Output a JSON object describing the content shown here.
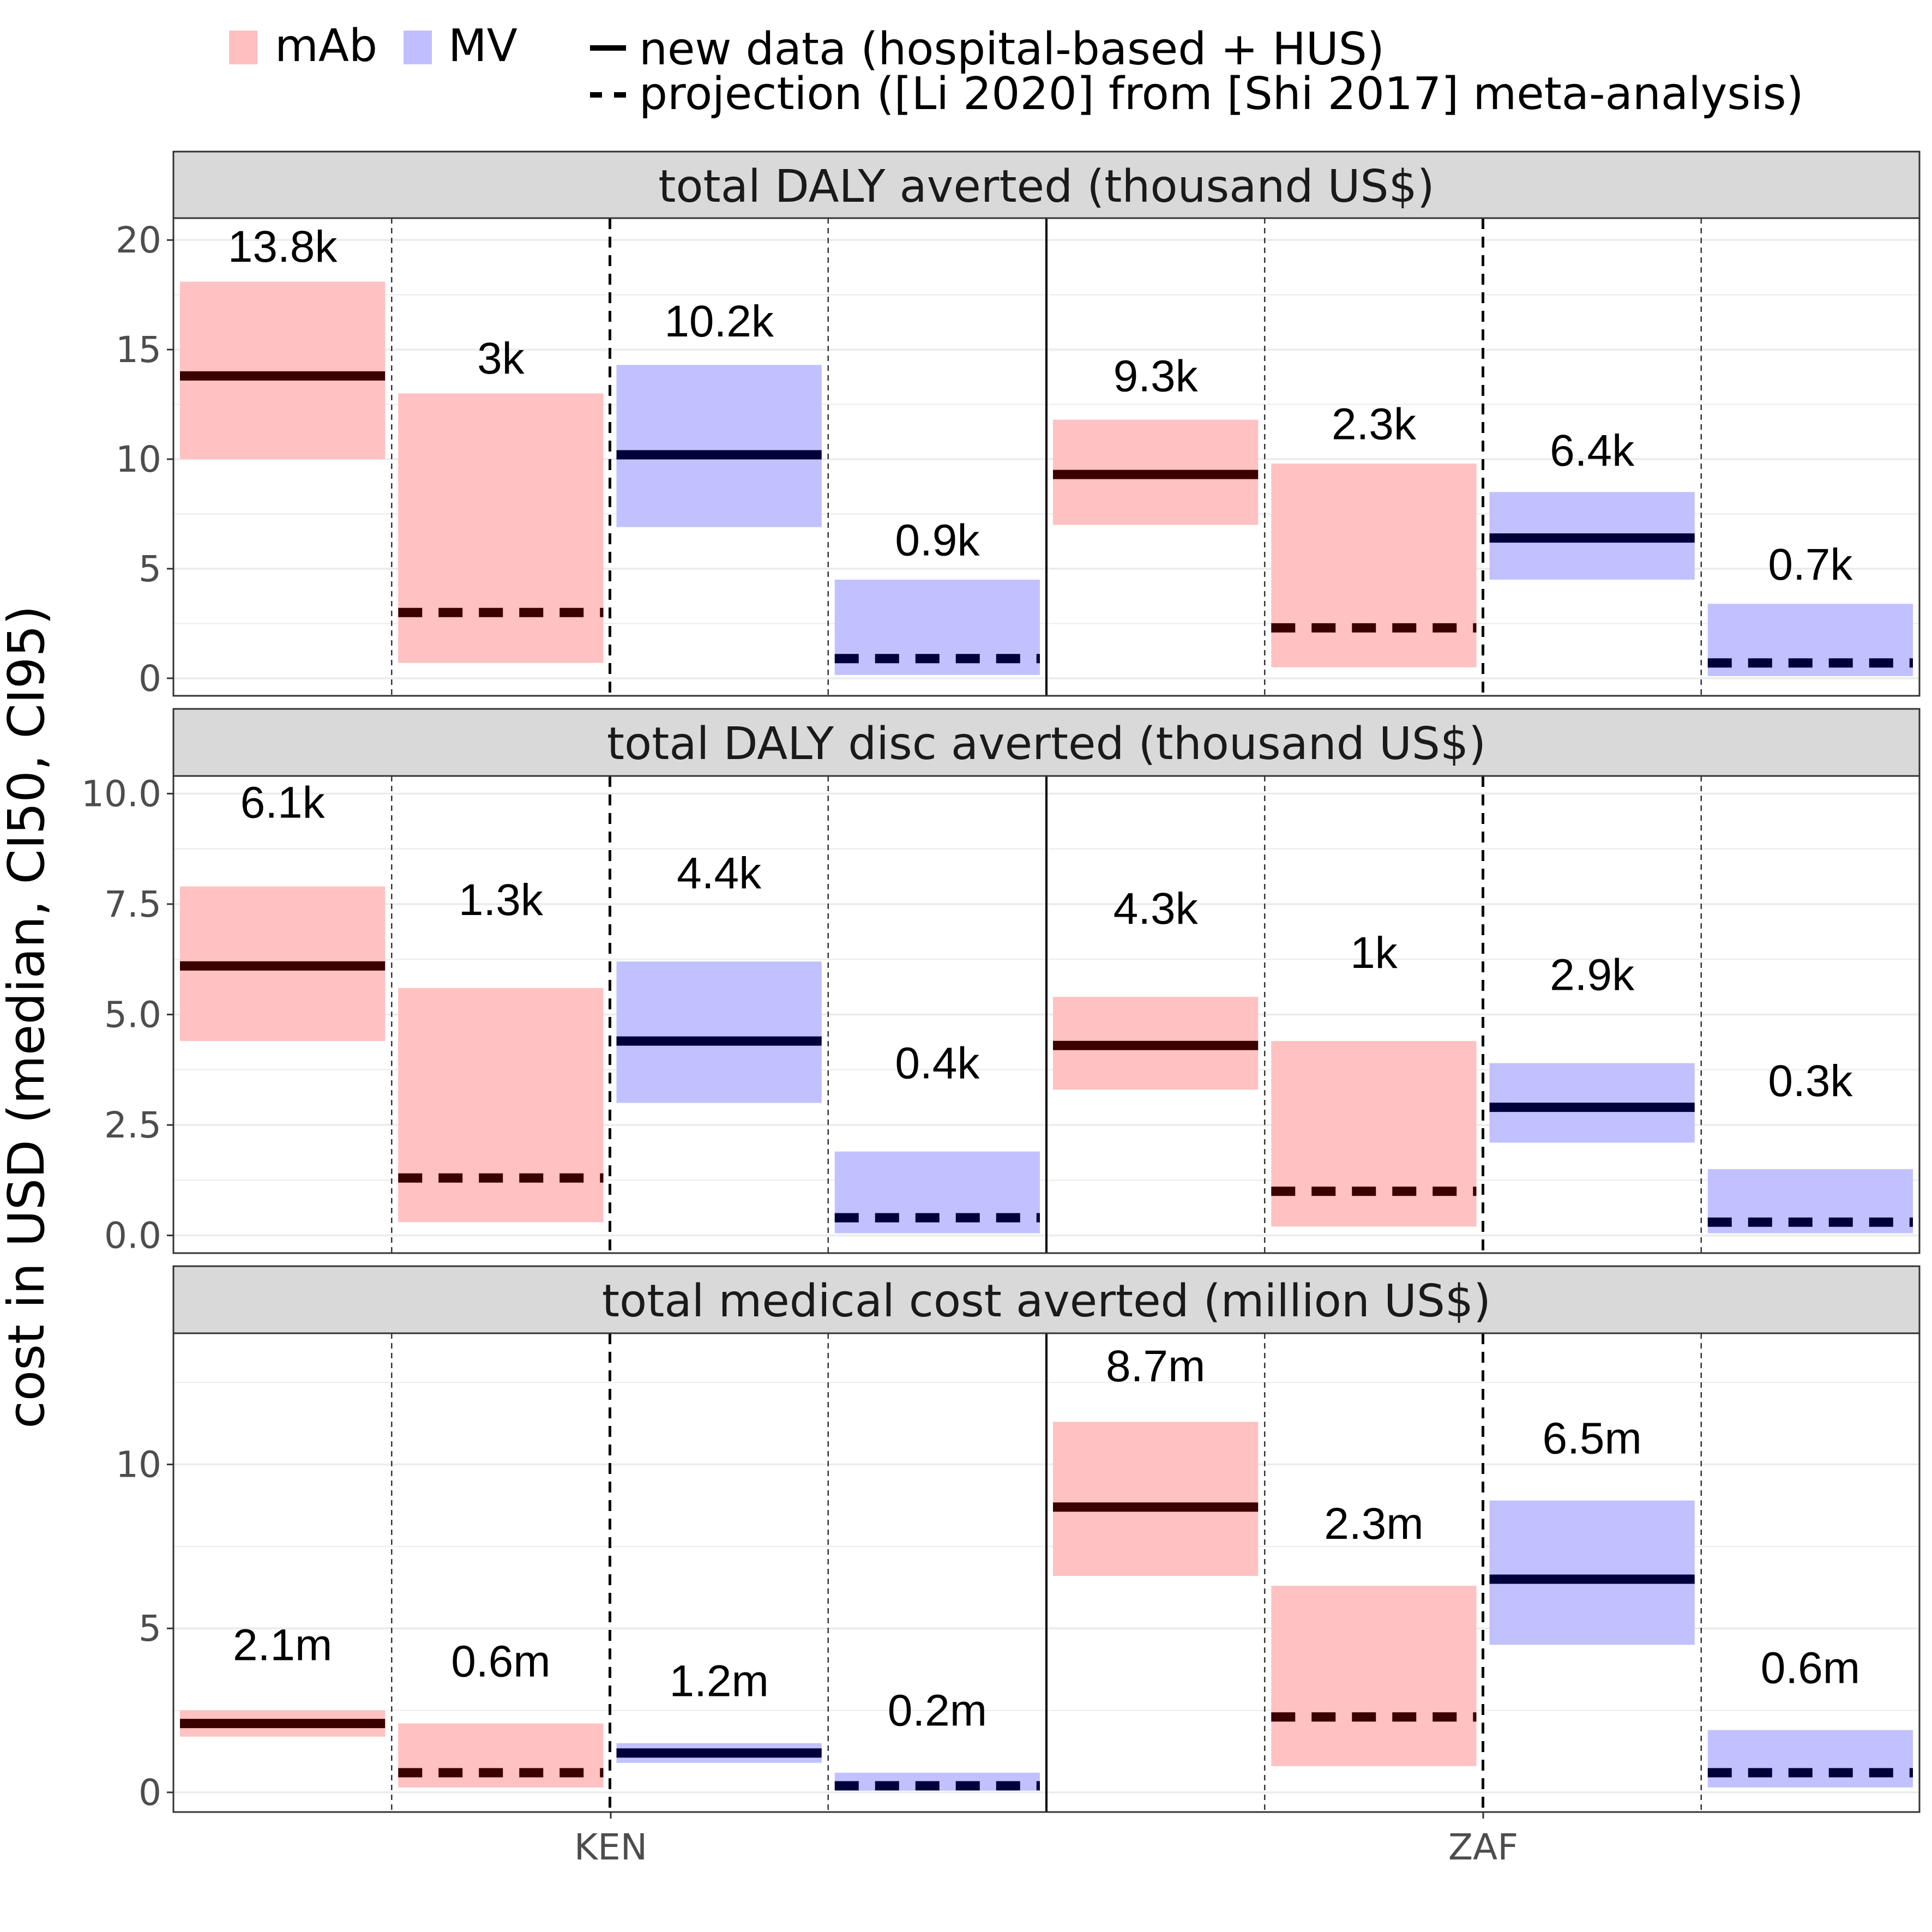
{
  "legend": {
    "fill_items": [
      {
        "name": "mAb",
        "color": "#FFBFBF"
      },
      {
        "name": "MV",
        "color": "#BFBFFF"
      }
    ],
    "line_items": [
      {
        "name": "new data (hospital-based + HUS)",
        "style": "solid"
      },
      {
        "name": "projection ([Li 2020] from [Shi 2017] meta-analysis)",
        "style": "dashed"
      }
    ]
  },
  "y_axis_title": "cost in USD (median, CI50, CI95)",
  "x_categories": [
    "KEN",
    "ZAF"
  ],
  "colors": {
    "mAb_fill": "#FFBFBF",
    "MV_fill": "#BFBFFF",
    "mAb_line": "#3B0000",
    "MV_line": "#00003B",
    "strip_bg": "#D9D9D9",
    "grid": "#EBEBEB"
  },
  "chart_data": {
    "type": "crossbar",
    "group_order": [
      {
        "country": "KEN",
        "product": "mAb",
        "data": "new data (hospital-based + HUS)"
      },
      {
        "country": "KEN",
        "product": "mAb",
        "data": "projection ([Li 2020] from [Shi 2017] meta-analysis)"
      },
      {
        "country": "KEN",
        "product": "MV",
        "data": "new data (hospital-based + HUS)"
      },
      {
        "country": "KEN",
        "product": "MV",
        "data": "projection ([Li 2020] from [Shi 2017] meta-analysis)"
      },
      {
        "country": "ZAF",
        "product": "mAb",
        "data": "new data (hospital-based + HUS)"
      },
      {
        "country": "ZAF",
        "product": "mAb",
        "data": "projection ([Li 2020] from [Shi 2017] meta-analysis)"
      },
      {
        "country": "ZAF",
        "product": "MV",
        "data": "new data (hospital-based + HUS)"
      },
      {
        "country": "ZAF",
        "product": "MV",
        "data": "projection ([Li 2020] from [Shi 2017] meta-analysis)"
      }
    ],
    "panels": [
      {
        "title": "total DALY averted (thousand US$)",
        "ylim": [
          -0.8,
          21.0
        ],
        "ytick_values": [
          0,
          5,
          10,
          15,
          20
        ],
        "ytick_labels": [
          "0",
          "5",
          "10",
          "15",
          "20"
        ],
        "median": [
          13.8,
          3.0,
          10.2,
          0.9,
          9.3,
          2.3,
          6.4,
          0.7
        ],
        "lower": [
          10.0,
          0.7,
          6.9,
          0.15,
          7.0,
          0.5,
          4.5,
          0.1
        ],
        "upper": [
          18.1,
          13.0,
          14.3,
          4.5,
          11.8,
          9.8,
          8.5,
          3.4
        ],
        "labels": [
          "13.8k",
          "3k",
          "10.2k",
          "0.9k",
          "9.3k",
          "2.3k",
          "6.4k",
          "0.7k"
        ],
        "label_y": [
          19.7,
          14.6,
          16.3,
          6.3,
          13.8,
          11.6,
          10.4,
          5.2
        ]
      },
      {
        "title": "total DALY disc averted (thousand US$)",
        "ylim": [
          -0.4,
          10.4
        ],
        "ytick_values": [
          0,
          2.5,
          5,
          7.5,
          10
        ],
        "ytick_labels": [
          "0.0",
          "2.5",
          "5.0",
          "7.5",
          "10.0"
        ],
        "median": [
          6.1,
          1.3,
          4.4,
          0.4,
          4.3,
          1.0,
          2.9,
          0.3
        ],
        "lower": [
          4.4,
          0.3,
          3.0,
          0.05,
          3.3,
          0.2,
          2.1,
          0.05
        ],
        "upper": [
          7.9,
          5.6,
          6.2,
          1.9,
          5.4,
          4.4,
          3.9,
          1.5
        ],
        "labels": [
          "6.1k",
          "1.3k",
          "4.4k",
          "0.4k",
          "4.3k",
          "1k",
          "2.9k",
          "0.3k"
        ],
        "label_y": [
          9.8,
          7.6,
          8.2,
          3.9,
          7.4,
          6.4,
          5.9,
          3.5
        ]
      },
      {
        "title": "total medical cost averted (million US$)",
        "ylim": [
          -0.6,
          14.0
        ],
        "ytick_values": [
          0,
          5,
          10
        ],
        "ytick_labels": [
          "0",
          "5",
          "10"
        ],
        "median": [
          2.1,
          0.6,
          1.2,
          0.2,
          8.7,
          2.3,
          6.5,
          0.6
        ],
        "lower": [
          1.7,
          0.15,
          0.9,
          0.05,
          6.6,
          0.8,
          4.5,
          0.15
        ],
        "upper": [
          2.5,
          2.1,
          1.5,
          0.6,
          11.3,
          6.3,
          8.9,
          1.9
        ],
        "labels": [
          "2.1m",
          "0.6m",
          "1.2m",
          "0.2m",
          "8.7m",
          "2.3m",
          "6.5m",
          "0.6m"
        ],
        "label_y": [
          4.5,
          4.0,
          3.4,
          2.5,
          13.0,
          8.2,
          10.8,
          3.8
        ]
      }
    ]
  }
}
